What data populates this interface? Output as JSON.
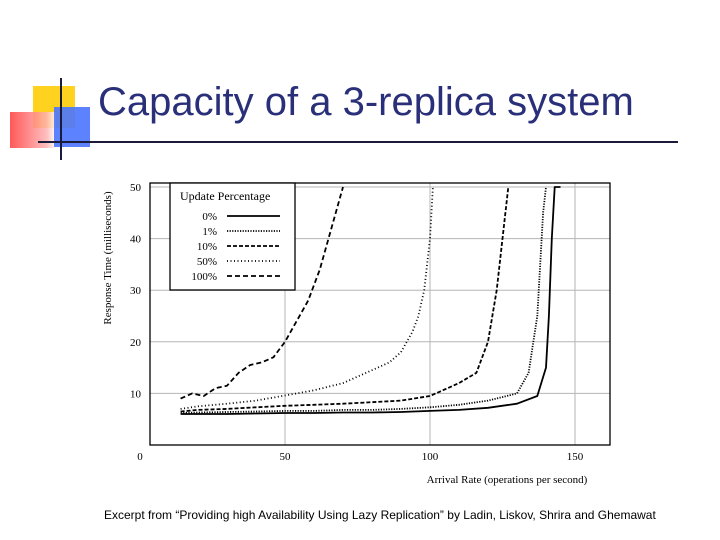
{
  "slide": {
    "title": "Capacity of a 3-replica system",
    "caption": "Excerpt from “Providing high Availability Using Lazy Replication” by Ladin, Liskov, Shrira and Ghemawat"
  },
  "chart_data": {
    "type": "line",
    "title": "",
    "xlabel": "Arrival Rate (operations per second)",
    "ylabel": "Response Time (milliseconds)",
    "xlim": [
      0,
      160
    ],
    "ylim": [
      0,
      50
    ],
    "xticks": [
      "0",
      "50",
      "100",
      "150"
    ],
    "yticks": [
      "10",
      "20",
      "30",
      "40",
      "50"
    ],
    "grid": true,
    "legend_title": "Update Percentage",
    "legend_position": "top-left",
    "series": [
      {
        "name": "0%",
        "dash": "",
        "x": [
          14,
          20,
          30,
          40,
          50,
          60,
          70,
          80,
          90,
          100,
          110,
          120,
          130,
          137,
          140,
          141,
          142,
          143,
          145
        ],
        "y": [
          6,
          6,
          6,
          6.1,
          6.2,
          6.2,
          6.3,
          6.3,
          6.4,
          6.6,
          6.8,
          7.2,
          8,
          9.5,
          15,
          25,
          40,
          50,
          50
        ]
      },
      {
        "name": "1%",
        "dash": "1.2,1.4",
        "x": [
          14,
          20,
          30,
          40,
          50,
          60,
          70,
          80,
          90,
          100,
          110,
          120,
          130,
          134,
          137,
          138,
          139,
          140
        ],
        "y": [
          6.2,
          6.3,
          6.4,
          6.5,
          6.6,
          6.6,
          6.8,
          6.8,
          7,
          7.3,
          7.8,
          8.6,
          10,
          14,
          25,
          35,
          45,
          50
        ]
      },
      {
        "name": "10%",
        "dash": "4,2",
        "x": [
          14,
          20,
          30,
          40,
          50,
          60,
          70,
          80,
          90,
          100,
          110,
          116,
          120,
          123,
          125,
          127
        ],
        "y": [
          6.5,
          6.8,
          7,
          7.3,
          7.6,
          7.8,
          8,
          8.3,
          8.6,
          9.5,
          12,
          14,
          20,
          30,
          40,
          50
        ]
      },
      {
        "name": "50%",
        "dash": "1,2.5",
        "x": [
          14,
          20,
          30,
          40,
          50,
          60,
          70,
          80,
          86,
          90,
          94,
          96,
          98,
          100,
          101
        ],
        "y": [
          7,
          7.5,
          8,
          8.6,
          9.6,
          10.6,
          12,
          14.5,
          16,
          18,
          22,
          25,
          30,
          40,
          50
        ]
      },
      {
        "name": "100%",
        "dash": "5,3",
        "x": [
          14,
          18,
          22,
          26,
          30,
          34,
          38,
          42,
          46,
          50,
          54,
          58,
          62,
          65,
          67,
          69,
          70
        ],
        "y": [
          9,
          10,
          9.5,
          11,
          11.5,
          14,
          15.5,
          16,
          17,
          20,
          24,
          28,
          34,
          40,
          44,
          48,
          50
        ]
      }
    ]
  }
}
